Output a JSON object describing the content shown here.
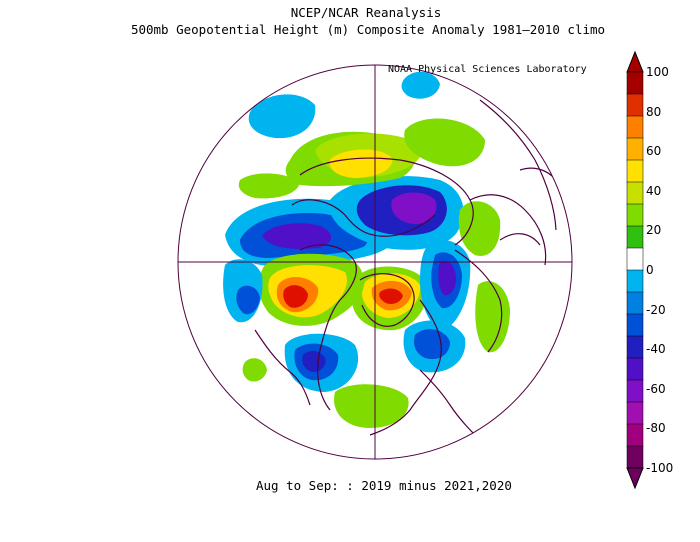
{
  "header": {
    "title_line1": "NCEP/NCAR Reanalysis",
    "title_line2": "500mb Geopotential Height (m) Composite Anomaly 1981–2010 climo",
    "lab_label": "NOAA Physical Sciences Laboratory"
  },
  "footer": {
    "period": "Aug to Sep: : 2019 minus 2021,2020"
  },
  "colorbar": {
    "labels": [
      "100",
      "80",
      "60",
      "40",
      "20",
      "0",
      "-20",
      "-40",
      "-60",
      "-80",
      "-100"
    ],
    "colors": [
      "#a50000",
      "#e03000",
      "#ff8000",
      "#ffb000",
      "#ffe000",
      "#c8e000",
      "#80dc00",
      "#30c010",
      "#ffffff",
      "#00b4f0",
      "#0080e0",
      "#0050d8",
      "#2020c0",
      "#5010c8",
      "#8010c8",
      "#a010b0",
      "#a00080",
      "#700060"
    ]
  },
  "map": {
    "projection": "north-polar-stereographic",
    "grid": "on",
    "palette": {
      "green": "#80dc00",
      "lgreen": "#a8e000",
      "yellow": "#ffe000",
      "orange": "#ff8000",
      "red": "#e01000",
      "cyan": "#00b4f0",
      "blue": "#0050d8",
      "indigo": "#2020c0",
      "purple": "#8010c8",
      "coast": "#500040"
    }
  }
}
